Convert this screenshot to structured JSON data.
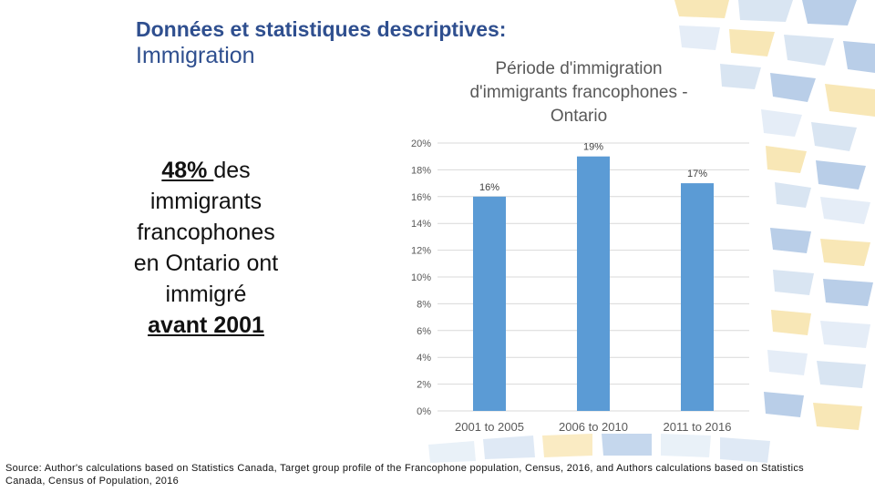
{
  "slide": {
    "title_bold": "Données et statistiques descriptives:",
    "title_sub": "Immigration"
  },
  "callout": {
    "pct": "48% ",
    "line1_rest": "des",
    "line2": "immigrants",
    "line3": "francophones",
    "line4": "en Ontario ont",
    "line5": "immigré",
    "line6": "avant 2001 "
  },
  "chart_data": {
    "type": "bar",
    "title_lines": [
      "Période d'immigration",
      "d'immigrants francophones  -",
      "Ontario"
    ],
    "categories": [
      "2001 to 2005",
      "2006 to 2010",
      "2011 to 2016"
    ],
    "values": [
      16,
      19,
      17
    ],
    "data_labels": [
      "16%",
      "19%",
      "17%"
    ],
    "yticks": [
      "0%",
      "2%",
      "4%",
      "6%",
      "8%",
      "10%",
      "12%",
      "14%",
      "16%",
      "18%",
      "20%"
    ],
    "ylim": [
      0,
      20
    ],
    "grid": true,
    "bar_color": "#5b9bd5"
  },
  "source": "Source: Author's calculations based on Statistics Canada, Target group profile of the Francophone population, Census, 2016, and Authors calculations based on Statistics Canada, Census of Population, 2016"
}
